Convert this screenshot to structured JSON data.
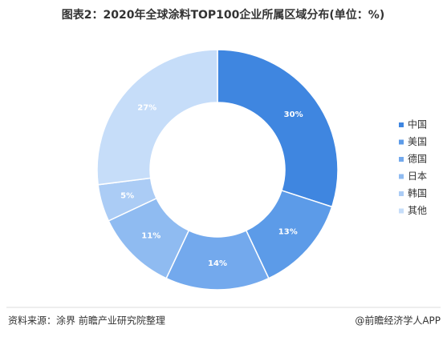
{
  "chart_data": {
    "type": "donut",
    "title": "图表2：2020年全球涂料TOP100企业所属区域分布(单位：%)",
    "categories": [
      "中国",
      "美国",
      "德国",
      "日本",
      "韩国",
      "其他"
    ],
    "values": [
      30,
      13,
      14,
      11,
      5,
      27
    ],
    "value_labels": [
      "30%",
      "13%",
      "14%",
      "11%",
      "5%",
      "27%"
    ],
    "colors": [
      "#3f86e0",
      "#5c9be8",
      "#73a9ed",
      "#8fbbf1",
      "#abccf5",
      "#c6ddf9"
    ],
    "legend": "right",
    "source": "资料来源：涂界 前瞻产业研究院整理",
    "credit": "@前瞻经济学人APP"
  }
}
